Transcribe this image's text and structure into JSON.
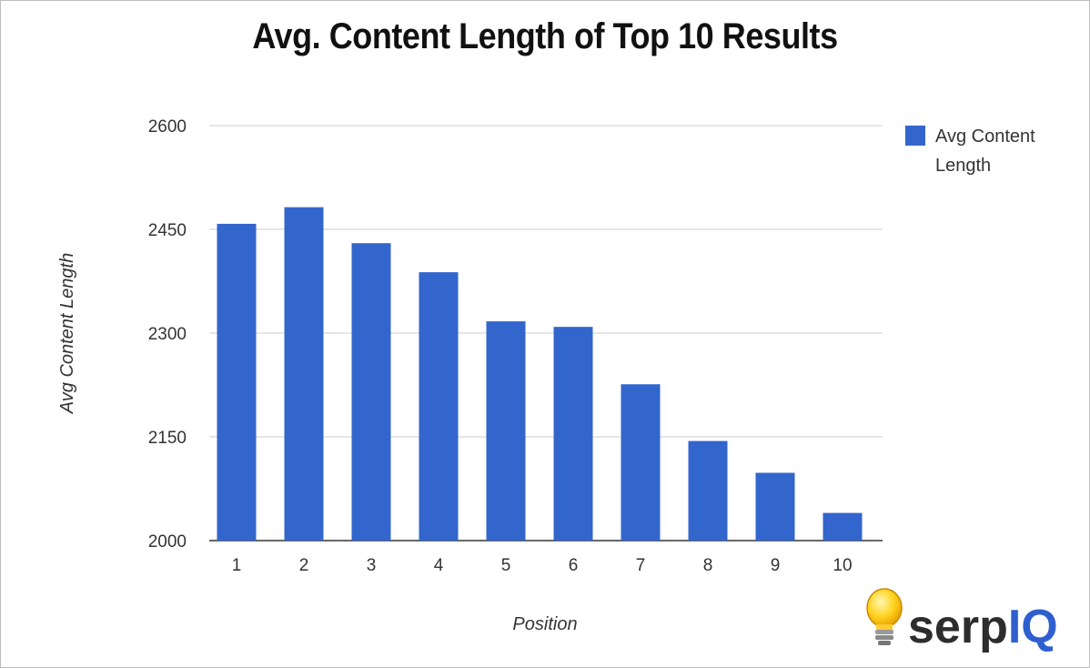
{
  "chart_data": {
    "type": "bar",
    "title": "Avg. Content Length of Top 10 Results",
    "xlabel": "Position",
    "ylabel": "Avg Content Length",
    "categories": [
      "1",
      "2",
      "3",
      "4",
      "5",
      "6",
      "7",
      "8",
      "9",
      "10"
    ],
    "series": [
      {
        "name": "Avg Content Length",
        "values": [
          2458,
          2482,
          2430,
          2388,
          2317,
          2309,
          2226,
          2144,
          2098,
          2040
        ]
      }
    ],
    "ylim": [
      2000,
      2600
    ],
    "yticks": [
      2000,
      2150,
      2300,
      2450,
      2600
    ],
    "grid": true,
    "legend": "right",
    "colors": {
      "bar": "#3366cc",
      "grid": "#cccccc",
      "axis": "#333333"
    }
  },
  "legend": {
    "line1": "Avg Content",
    "line2": "Length"
  },
  "logo": {
    "text": "serpIQ",
    "icon": "lightbulb-icon"
  }
}
